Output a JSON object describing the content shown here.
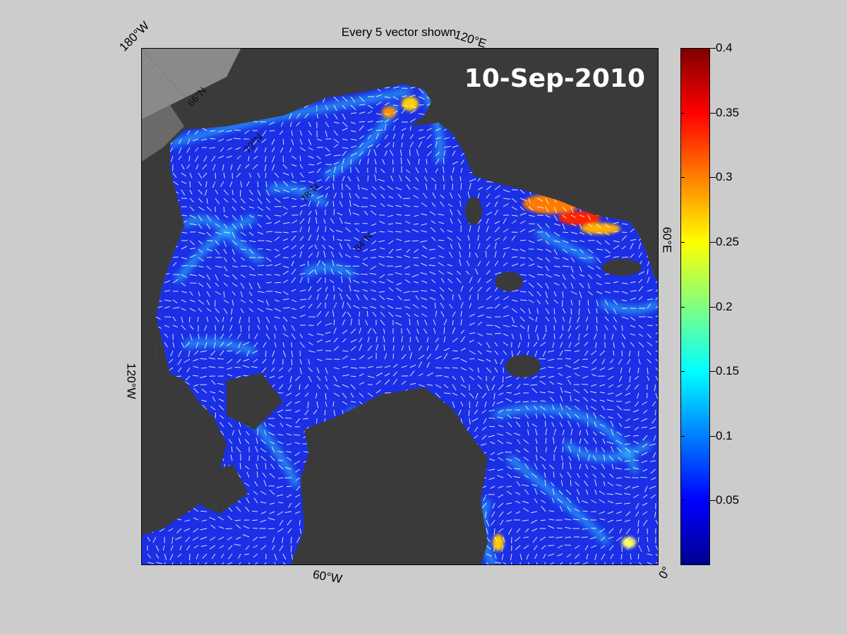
{
  "title": "Every 5 vector shown",
  "date_label": "10-Sep-2010",
  "longitude_labels": {
    "top_left": "180°W",
    "top_right": "120°E",
    "right": "60°E",
    "left": "120°W",
    "bottom": "60°W",
    "bottom_right": "0°"
  },
  "latitude_labels": [
    "66°N",
    "72°N",
    "78°N",
    "84°N"
  ],
  "colorbar": {
    "ticks": [
      "0.4",
      "0.35",
      "0.3",
      "0.25",
      "0.2",
      "0.15",
      "0.1",
      "0.05"
    ],
    "min": 0,
    "max": 0.4,
    "colormap": "jet",
    "colors": [
      "#00008f",
      "#0000ff",
      "#0080ff",
      "#00ffff",
      "#80ff80",
      "#ffff00",
      "#ff8000",
      "#ff0000",
      "#800000"
    ]
  },
  "colors": {
    "background": "#cccccc",
    "land": "#3a3a3a",
    "outside_region": "#8a8a8a",
    "ocean_field": "#1a2fe6",
    "vectors": "#ffffff"
  }
}
